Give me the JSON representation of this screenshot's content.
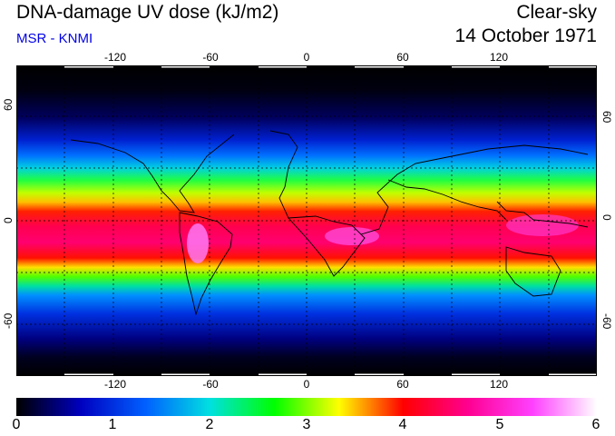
{
  "header": {
    "title": "DNA-damage UV dose (kJ/m2)",
    "subtitle": "MSR - KNMI",
    "condition": "Clear-sky",
    "date": "14 October 1971"
  },
  "map": {
    "lon_ticks": [
      "-120",
      "-60",
      "0",
      "60",
      "120"
    ],
    "lat_ticks": [
      "60",
      "0",
      "-60"
    ],
    "lat_ticks_right": [
      "60",
      "0",
      "-60"
    ],
    "gridlines": "dashed every 30 degrees"
  },
  "colorbar": {
    "labels": [
      "0",
      "1",
      "2",
      "3",
      "4",
      "5",
      "6"
    ],
    "min": 0,
    "max": 6,
    "colors": [
      "#000000",
      "#0000c0",
      "#0060ff",
      "#00e0e0",
      "#00ff00",
      "#ffff00",
      "#ff0000",
      "#ff0090",
      "#ff40ff",
      "#ffffff"
    ]
  }
}
